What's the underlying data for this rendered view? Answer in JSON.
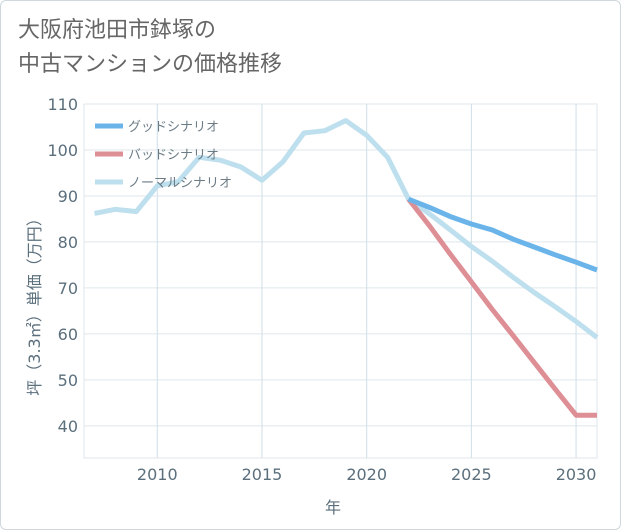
{
  "title": {
    "line1": "大阪府池田市鉢塚の",
    "line2": "中古マンションの価格推移"
  },
  "chart_data": {
    "type": "line",
    "xlabel": "年",
    "ylabel": "坪（3.3㎡）単価（万円）",
    "xlim": [
      2006.5,
      2031
    ],
    "ylim": [
      33,
      110
    ],
    "xticks": [
      2010,
      2015,
      2020,
      2025,
      2030
    ],
    "yticks": [
      40,
      50,
      60,
      70,
      80,
      90,
      100,
      110
    ],
    "grid": true,
    "legend_position": "top-left",
    "series": [
      {
        "name": "グッドシナリオ",
        "color": "#6ab4ea",
        "x": [
          2022,
          2023,
          2024,
          2025,
          2026,
          2027,
          2028,
          2029,
          2030,
          2031
        ],
        "y": [
          89.3,
          87.5,
          85.5,
          83.9,
          82.6,
          80.6,
          78.9,
          77.2,
          75.6,
          73.9
        ]
      },
      {
        "name": "バッドシナリオ",
        "color": "#de8f96",
        "x": [
          2022,
          2023,
          2024,
          2025,
          2026,
          2027,
          2028,
          2029,
          2030,
          2031
        ],
        "y": [
          89.3,
          83.5,
          77.3,
          71.3,
          65.3,
          59.6,
          53.8,
          48.0,
          42.3,
          42.3
        ]
      },
      {
        "name": "ノーマルシナリオ",
        "color": "#bddfee",
        "x": [
          2007,
          2008,
          2009,
          2010,
          2011,
          2012,
          2013,
          2014,
          2015,
          2016,
          2017,
          2018,
          2019,
          2020,
          2021,
          2022,
          2023,
          2024,
          2025,
          2026,
          2027,
          2028,
          2029,
          2030,
          2031
        ],
        "y": [
          86.2,
          87.1,
          86.6,
          92.2,
          93.1,
          98.4,
          97.8,
          96.3,
          93.4,
          97.4,
          103.7,
          104.2,
          106.4,
          103.2,
          98.4,
          89.3,
          86.1,
          82.6,
          79.0,
          75.8,
          72.3,
          69.0,
          65.9,
          62.7,
          59.2
        ]
      }
    ]
  }
}
